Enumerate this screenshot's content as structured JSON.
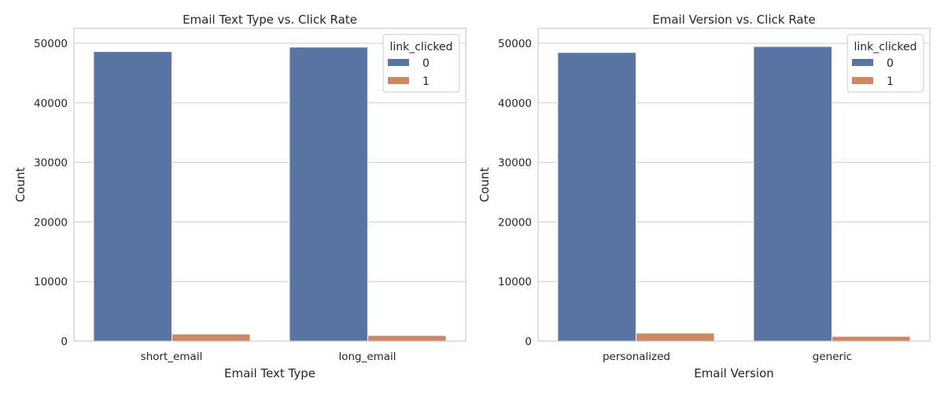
{
  "chart_data": [
    {
      "type": "bar",
      "title": "Email Text Type vs. Click Rate",
      "xlabel": "Email Text Type",
      "ylabel": "Count",
      "categories": [
        "short_email",
        "long_email"
      ],
      "ylim": [
        0,
        52500
      ],
      "yticks": [
        0,
        10000,
        20000,
        30000,
        40000,
        50000
      ],
      "grid": true,
      "legend": {
        "title": "link_clicked",
        "position": "top-right"
      },
      "series": [
        {
          "name": "0",
          "values": [
            48600,
            49350
          ],
          "color": "#5875a4"
        },
        {
          "name": "1",
          "values": [
            1200,
            950
          ],
          "color": "#cc8963"
        }
      ]
    },
    {
      "type": "bar",
      "title": "Email Version vs. Click Rate",
      "xlabel": "Email Version",
      "ylabel": "Count",
      "categories": [
        "personalized",
        "generic"
      ],
      "ylim": [
        0,
        52500
      ],
      "yticks": [
        0,
        10000,
        20000,
        30000,
        40000,
        50000
      ],
      "grid": true,
      "legend": {
        "title": "link_clicked",
        "position": "top-right"
      },
      "series": [
        {
          "name": "0",
          "values": [
            48450,
            49450
          ],
          "color": "#5875a4"
        },
        {
          "name": "1",
          "values": [
            1350,
            800
          ],
          "color": "#cc8963"
        }
      ]
    }
  ]
}
